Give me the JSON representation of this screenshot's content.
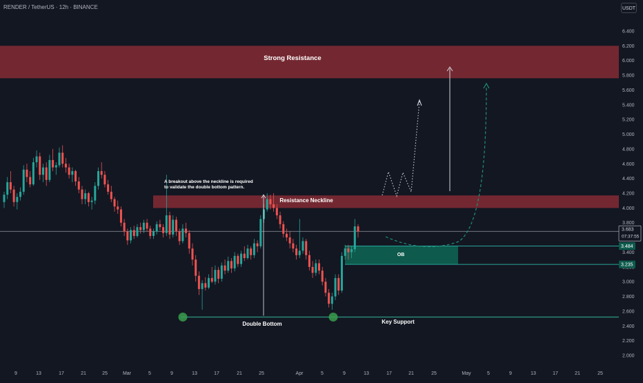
{
  "header": {
    "symbol": "RENDER / TetherUS · 12h · BINANCE",
    "currency": "USDT"
  },
  "colors": {
    "background": "#131722",
    "up": "#26a69a",
    "down": "#ef5350",
    "resistance_zone": "#7c2a33",
    "ob_zone": "#0e5a4c",
    "text": "#ffffff",
    "axis_text": "#b2b5be"
  },
  "chart_data": {
    "type": "candlestick",
    "ylim": [
      1.9,
      6.6
    ],
    "y_ticks": [
      "2.000",
      "2.200",
      "2.400",
      "2.600",
      "2.800",
      "3.000",
      "3.200",
      "3.400",
      "3.600",
      "3.800",
      "4.000",
      "4.200",
      "4.400",
      "4.600",
      "4.800",
      "5.000",
      "5.200",
      "5.400",
      "5.600",
      "5.800",
      "6.000",
      "6.200",
      "6.400"
    ],
    "x_ticks": [
      "9",
      "13",
      "17",
      "21",
      "25",
      "Mar",
      "5",
      "9",
      "13",
      "17",
      "21",
      "25",
      "Apr",
      "5",
      "9",
      "13",
      "17",
      "21",
      "25",
      "May",
      "5",
      "9",
      "13",
      "17",
      "21",
      "25"
    ],
    "price_labels": {
      "last": "3.683",
      "countdown": "07:37:55",
      "ob_top": "3.484",
      "ob_bottom": "3.235"
    },
    "zones": {
      "strong_resistance": {
        "label": "Strong Resistance",
        "top": 6.2,
        "bottom": 5.76
      },
      "resistance_neckline": {
        "label": "Resistance Neckline",
        "top": 4.17,
        "bottom": 4.0
      },
      "ob": {
        "label": "OB",
        "top": 3.484,
        "bottom": 3.235
      },
      "key_support": {
        "label": "Key Support",
        "level": 2.52
      }
    },
    "annotations": {
      "double_bottom": "Double Bottom",
      "breakout_note_line1": "A breakout above the neckline is required",
      "breakout_note_line2": "to validate the double bottom pattern."
    },
    "candles": [
      [
        4.08,
        4.22,
        4.0,
        4.18
      ],
      [
        4.18,
        4.42,
        4.12,
        4.35
      ],
      [
        4.35,
        4.5,
        4.2,
        4.25
      ],
      [
        4.25,
        4.3,
        4.02,
        4.08
      ],
      [
        4.08,
        4.2,
        3.98,
        4.15
      ],
      [
        4.15,
        4.28,
        4.1,
        4.22
      ],
      [
        4.22,
        4.58,
        4.18,
        4.52
      ],
      [
        4.52,
        4.6,
        4.35,
        4.42
      ],
      [
        4.42,
        4.5,
        4.28,
        4.32
      ],
      [
        4.32,
        4.68,
        4.3,
        4.62
      ],
      [
        4.62,
        4.78,
        4.55,
        4.7
      ],
      [
        4.7,
        4.75,
        4.38,
        4.45
      ],
      [
        4.45,
        4.6,
        4.35,
        4.55
      ],
      [
        4.55,
        4.62,
        4.3,
        4.38
      ],
      [
        4.38,
        4.72,
        4.35,
        4.65
      ],
      [
        4.65,
        4.8,
        4.5,
        4.55
      ],
      [
        4.55,
        4.62,
        4.45,
        4.58
      ],
      [
        4.58,
        4.82,
        4.55,
        4.75
      ],
      [
        4.75,
        4.85,
        4.55,
        4.6
      ],
      [
        4.6,
        4.68,
        4.48,
        4.55
      ],
      [
        4.55,
        4.6,
        4.4,
        4.45
      ],
      [
        4.45,
        4.55,
        4.35,
        4.5
      ],
      [
        4.5,
        4.52,
        4.3,
        4.36
      ],
      [
        4.36,
        4.42,
        4.2,
        4.25
      ],
      [
        4.25,
        4.3,
        4.05,
        4.12
      ],
      [
        4.12,
        4.25,
        4.05,
        4.2
      ],
      [
        4.2,
        4.22,
        4.02,
        4.08
      ],
      [
        4.08,
        4.15,
        3.98,
        4.1
      ],
      [
        4.1,
        4.35,
        4.05,
        4.3
      ],
      [
        4.3,
        4.55,
        4.25,
        4.5
      ],
      [
        4.5,
        4.62,
        4.4,
        4.45
      ],
      [
        4.45,
        4.5,
        4.28,
        4.32
      ],
      [
        4.32,
        4.38,
        4.18,
        4.22
      ],
      [
        4.22,
        4.3,
        4.08,
        4.12
      ],
      [
        4.12,
        4.15,
        3.95,
        4.02
      ],
      [
        4.02,
        4.1,
        3.92,
        3.98
      ],
      [
        3.98,
        4.02,
        3.75,
        3.8
      ],
      [
        3.8,
        3.85,
        3.62,
        3.68
      ],
      [
        3.68,
        3.72,
        3.5,
        3.56
      ],
      [
        3.56,
        3.74,
        3.52,
        3.7
      ],
      [
        3.7,
        3.76,
        3.58,
        3.62
      ],
      [
        3.62,
        3.78,
        3.6,
        3.74
      ],
      [
        3.74,
        3.8,
        3.65,
        3.7
      ],
      [
        3.7,
        3.84,
        3.66,
        3.8
      ],
      [
        3.8,
        3.85,
        3.68,
        3.72
      ],
      [
        3.72,
        3.76,
        3.58,
        3.62
      ],
      [
        3.62,
        3.72,
        3.58,
        3.68
      ],
      [
        3.68,
        3.82,
        3.64,
        3.78
      ],
      [
        3.78,
        3.84,
        3.7,
        3.74
      ],
      [
        3.74,
        3.78,
        3.6,
        3.66
      ],
      [
        3.66,
        4.45,
        3.62,
        3.9
      ],
      [
        3.9,
        3.95,
        3.58,
        3.64
      ],
      [
        3.64,
        3.9,
        3.6,
        3.84
      ],
      [
        3.84,
        3.88,
        3.62,
        3.68
      ],
      [
        3.68,
        3.72,
        3.5,
        3.55
      ],
      [
        3.55,
        3.78,
        3.52,
        3.72
      ],
      [
        3.72,
        3.8,
        3.6,
        3.66
      ],
      [
        3.66,
        3.7,
        3.38,
        3.45
      ],
      [
        3.45,
        3.52,
        3.22,
        3.3
      ],
      [
        3.3,
        3.36,
        3.0,
        3.08
      ],
      [
        3.08,
        3.14,
        2.82,
        2.9
      ],
      [
        2.9,
        3.02,
        2.62,
        2.98
      ],
      [
        2.98,
        3.06,
        2.88,
        2.92
      ],
      [
        2.92,
        3.1,
        2.9,
        3.05
      ],
      [
        3.05,
        3.2,
        2.98,
        3.0
      ],
      [
        3.0,
        3.22,
        2.96,
        3.16
      ],
      [
        3.16,
        3.2,
        2.98,
        3.04
      ],
      [
        3.04,
        3.26,
        3.0,
        3.22
      ],
      [
        3.22,
        3.3,
        3.1,
        3.15
      ],
      [
        3.15,
        3.34,
        3.12,
        3.28
      ],
      [
        3.28,
        3.32,
        3.12,
        3.18
      ],
      [
        3.18,
        3.4,
        3.14,
        3.35
      ],
      [
        3.35,
        3.38,
        3.2,
        3.24
      ],
      [
        3.24,
        3.42,
        3.2,
        3.38
      ],
      [
        3.38,
        3.48,
        3.28,
        3.32
      ],
      [
        3.32,
        3.5,
        3.3,
        3.45
      ],
      [
        3.45,
        3.48,
        3.3,
        3.36
      ],
      [
        3.36,
        3.58,
        3.32,
        3.52
      ],
      [
        3.52,
        3.56,
        3.4,
        3.48
      ],
      [
        3.48,
        3.9,
        3.45,
        3.85
      ],
      [
        3.85,
        4.05,
        3.8,
        3.98
      ],
      [
        3.98,
        4.2,
        3.95,
        4.12
      ],
      [
        4.12,
        4.18,
        3.98,
        4.05
      ],
      [
        4.05,
        4.2,
        3.95,
        4.0
      ],
      [
        4.0,
        4.05,
        3.85,
        3.9
      ],
      [
        3.9,
        3.95,
        3.72,
        3.78
      ],
      [
        3.78,
        3.82,
        3.6,
        3.65
      ],
      [
        3.65,
        3.72,
        3.55,
        3.6
      ],
      [
        3.6,
        3.68,
        3.45,
        3.52
      ],
      [
        3.52,
        3.58,
        3.4,
        3.45
      ],
      [
        3.45,
        3.5,
        3.3,
        3.36
      ],
      [
        3.36,
        3.85,
        3.32,
        3.42
      ],
      [
        3.42,
        3.6,
        3.38,
        3.55
      ],
      [
        3.55,
        3.58,
        3.3,
        3.36
      ],
      [
        3.36,
        3.42,
        3.15,
        3.2
      ],
      [
        3.2,
        3.28,
        3.05,
        3.12
      ],
      [
        3.12,
        3.3,
        3.08,
        3.25
      ],
      [
        3.25,
        3.3,
        3.1,
        3.15
      ],
      [
        3.15,
        3.2,
        2.95,
        3.0
      ],
      [
        3.0,
        3.05,
        2.8,
        2.85
      ],
      [
        2.85,
        2.9,
        2.65,
        2.7
      ],
      [
        2.7,
        2.85,
        2.62,
        2.8
      ],
      [
        2.8,
        3.1,
        2.75,
        3.05
      ],
      [
        3.05,
        3.1,
        2.82,
        2.88
      ],
      [
        2.88,
        3.4,
        2.85,
        3.35
      ],
      [
        3.35,
        3.5,
        3.3,
        3.45
      ],
      [
        3.45,
        3.5,
        3.3,
        3.4
      ],
      [
        3.4,
        3.48,
        3.32,
        3.44
      ],
      [
        3.44,
        3.85,
        3.4,
        3.75
      ],
      [
        3.75,
        3.78,
        3.6,
        3.68
      ]
    ]
  }
}
